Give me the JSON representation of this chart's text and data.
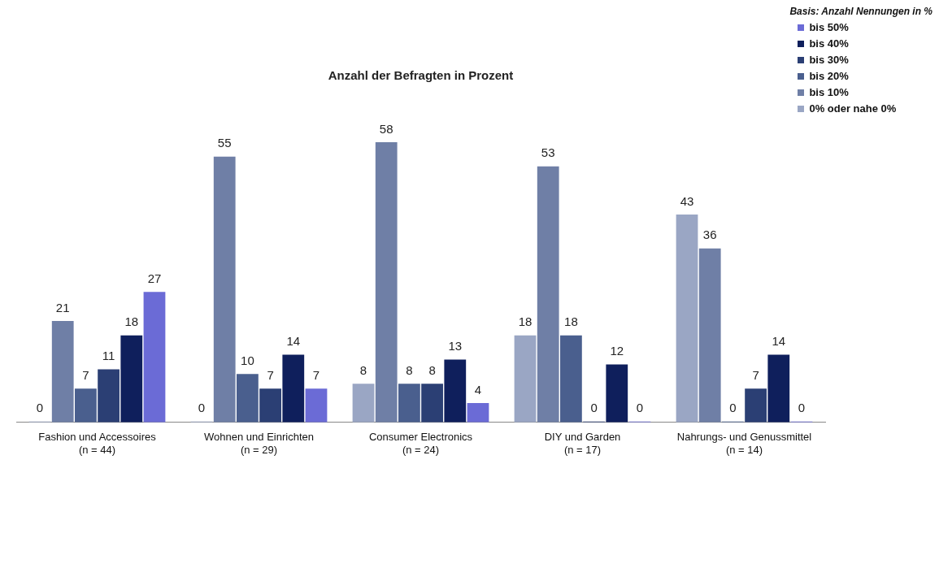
{
  "chart_data": {
    "type": "bar",
    "title": "Anzahl der Befragten in Prozent",
    "legend_title": "Basis: Anzahl Nennungen in %",
    "categories": [
      "Fashion und Accessoires\n(n = 44)",
      "Wohnen und Einrichten\n(n = 29)",
      "Consumer Electronics\n(n = 24)",
      "DIY und Garden\n(n = 17)",
      "Nahrungs- und Genussmittel\n(n = 14)"
    ],
    "series": [
      {
        "name": "0% oder nahe 0%",
        "color": "#9aa6c4",
        "values": [
          0,
          0,
          8,
          18,
          43
        ]
      },
      {
        "name": "bis 10%",
        "color": "#6f7fa6",
        "values": [
          21,
          55,
          58,
          53,
          36
        ]
      },
      {
        "name": "bis 20%",
        "color": "#4a5f8e",
        "values": [
          7,
          10,
          8,
          18,
          0
        ]
      },
      {
        "name": "bis 30%",
        "color": "#2b3f74",
        "values": [
          11,
          7,
          8,
          0,
          7
        ]
      },
      {
        "name": "bis 40%",
        "color": "#0f1f5c",
        "values": [
          18,
          14,
          13,
          12,
          14
        ]
      },
      {
        "name": "bis 50%",
        "color": "#6b6bd6",
        "values": [
          27,
          7,
          4,
          0,
          0
        ]
      }
    ],
    "data_labels": true,
    "legend": "top right",
    "grid": false
  }
}
